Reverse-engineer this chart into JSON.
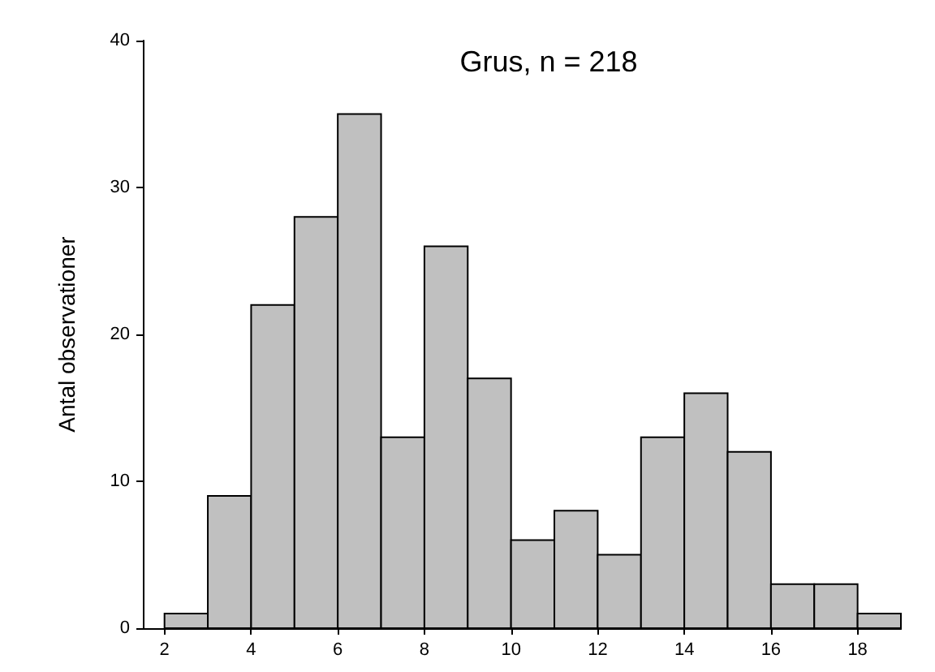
{
  "chart_data": {
    "type": "histogram",
    "title": "Grus, n = 218",
    "ylabel": "Antal observationer",
    "bins": [
      2,
      3,
      4,
      5,
      6,
      7,
      8,
      9,
      10,
      11,
      12,
      13,
      14,
      15,
      16,
      17,
      18,
      19
    ],
    "values": [
      1,
      9,
      22,
      28,
      35,
      13,
      26,
      17,
      6,
      8,
      5,
      13,
      16,
      12,
      3,
      3,
      1
    ],
    "color": "#c0c0c0",
    "xlim": [
      1.5,
      19
    ],
    "xticks": [
      2,
      4,
      6,
      8,
      10,
      12,
      14,
      16,
      18
    ],
    "ylim": [
      0,
      40
    ],
    "yticks": [
      0,
      10,
      20,
      30,
      40
    ],
    "grid": false
  }
}
